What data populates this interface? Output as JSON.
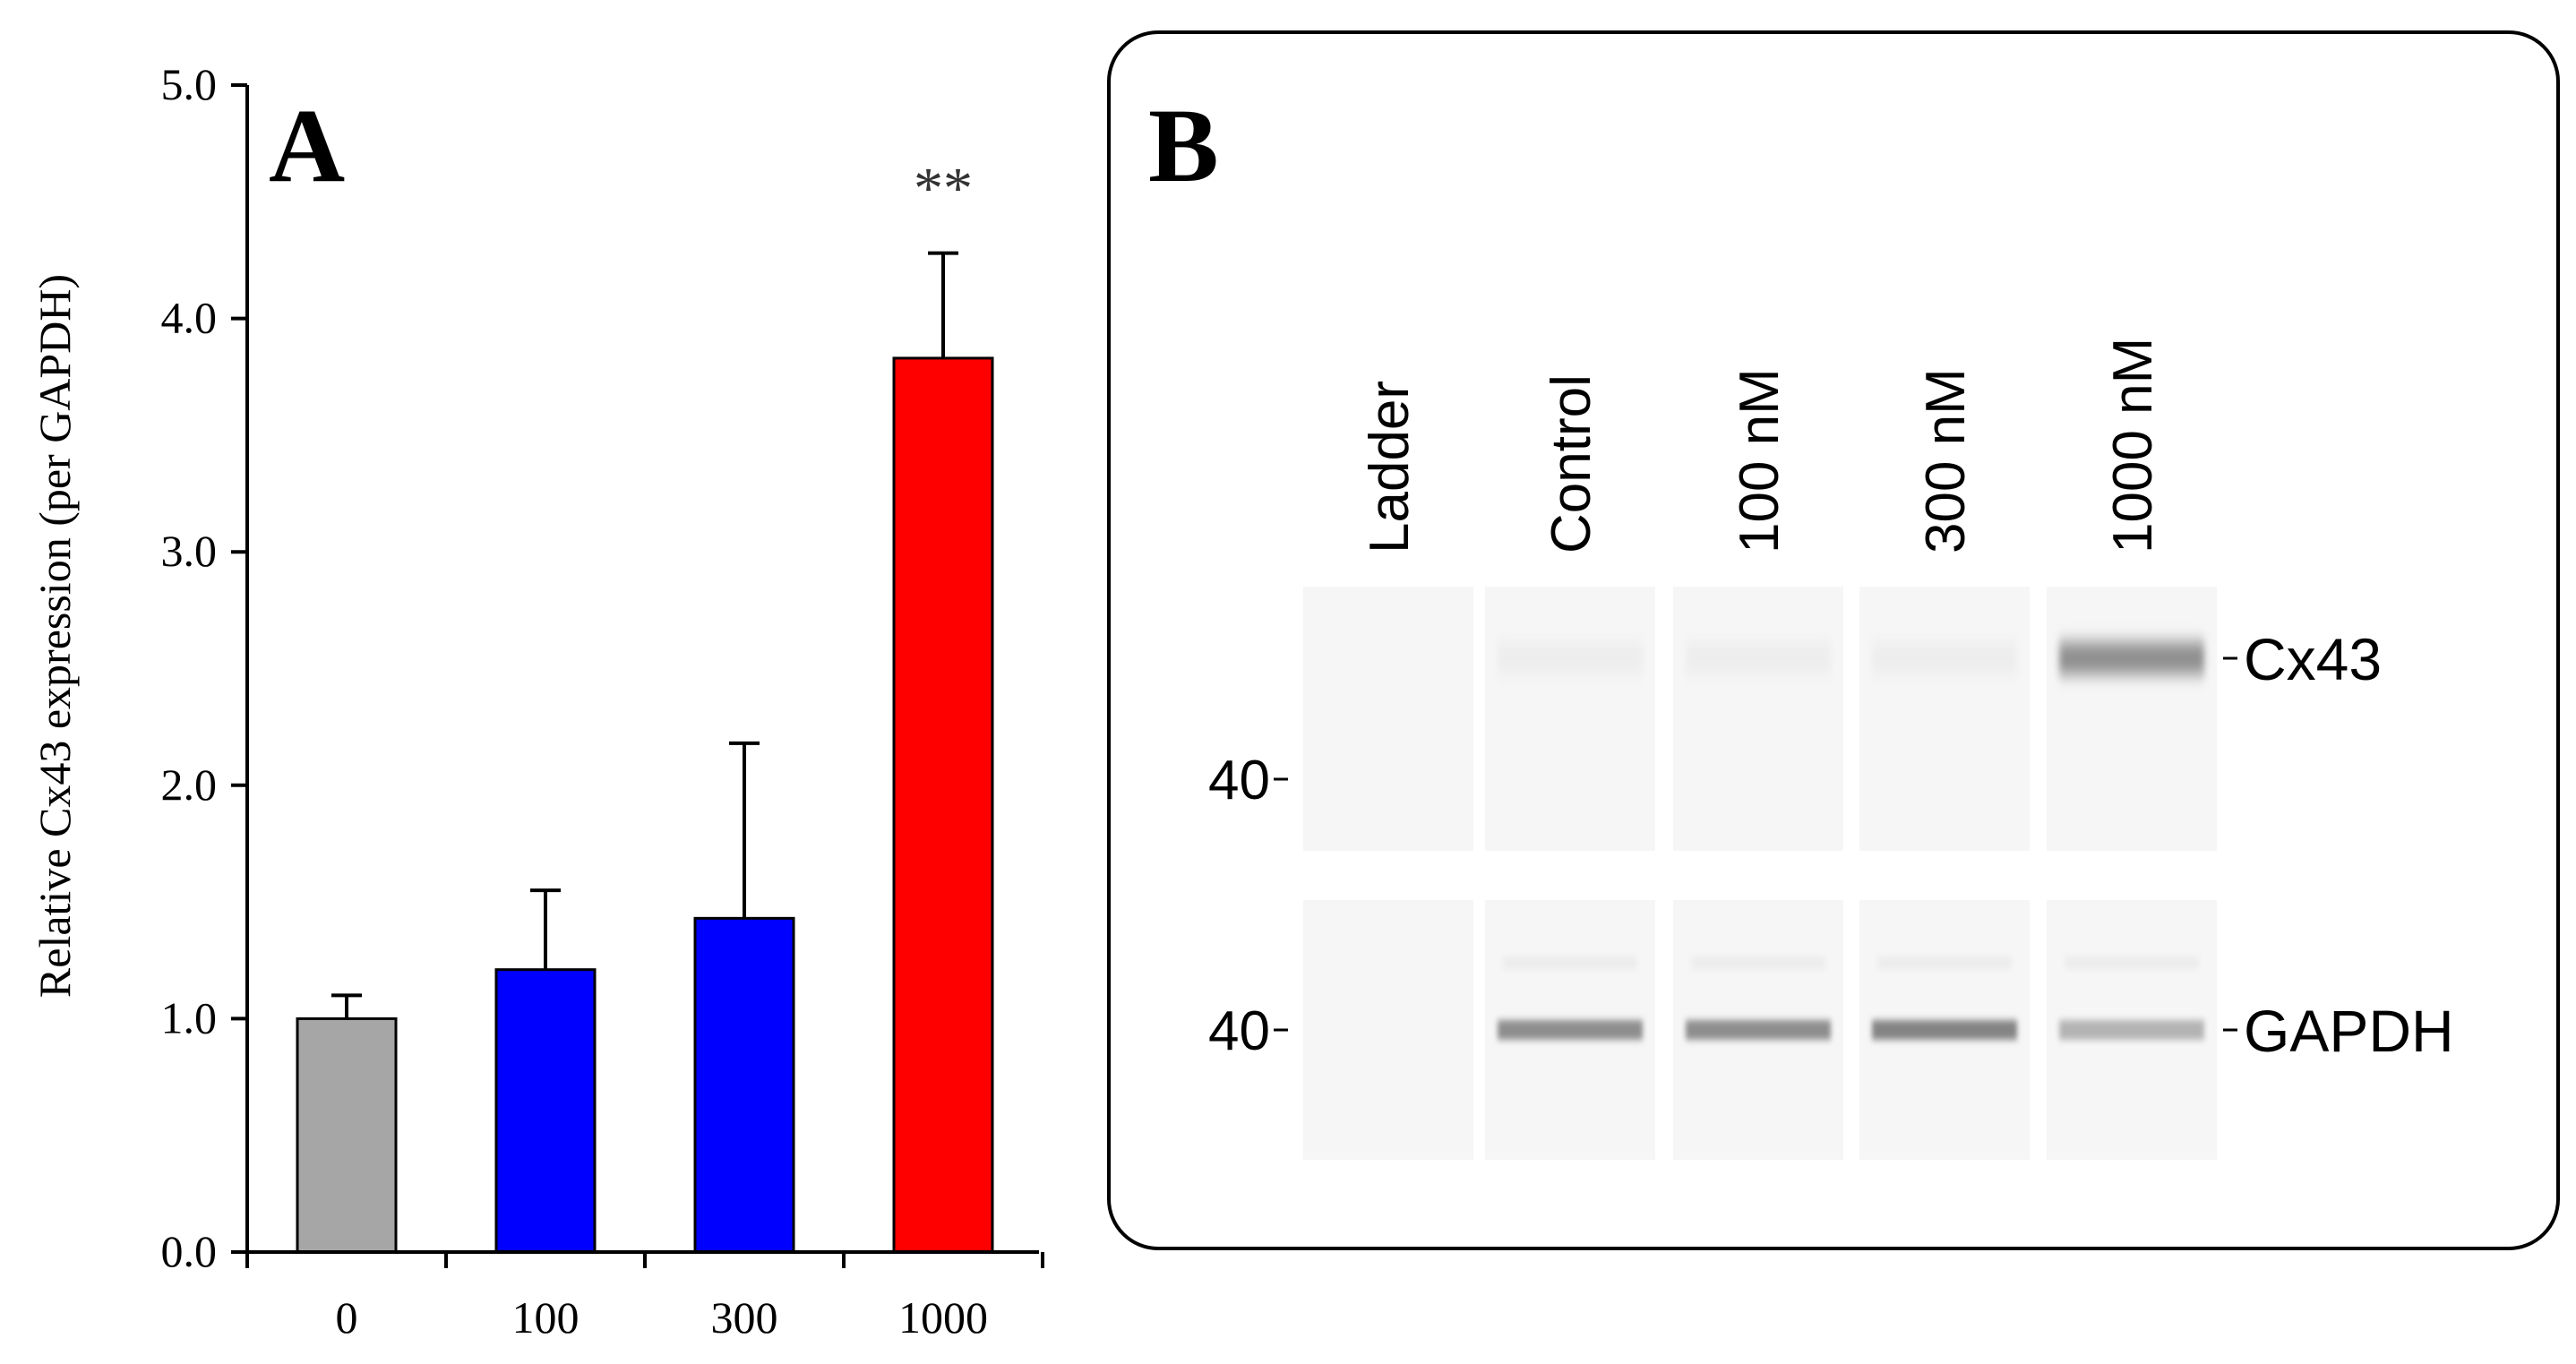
{
  "panel_a": {
    "label": "A",
    "chart_data": {
      "type": "bar",
      "categories": [
        "0",
        "100",
        "300",
        "1000"
      ],
      "values": [
        1.0,
        1.21,
        1.43,
        3.83
      ],
      "errors": [
        0.1,
        0.34,
        0.75,
        0.45
      ],
      "colors": [
        "#a6a6a6",
        "#0000ff",
        "#0000ff",
        "#ff0000"
      ],
      "ylabel": "Relative  Cx43 expression (per GAPDH)",
      "ylim": [
        0,
        5
      ],
      "yticks": [
        "0.0",
        "1.0",
        "2.0",
        "3.0",
        "4.0",
        "5.0"
      ],
      "annotations": [
        {
          "category": "1000",
          "text": "**"
        }
      ],
      "grid": false
    }
  },
  "panel_b": {
    "label": "B",
    "lanes": [
      "Ladder",
      "Control",
      "100 nM",
      "300 nM",
      "1000 nM"
    ],
    "markers": [
      "40",
      "40"
    ],
    "bands": [
      {
        "label": "Cx43",
        "intensity": [
          0,
          0.05,
          0.05,
          0.05,
          0.55
        ]
      },
      {
        "label": "GAPDH",
        "intensity": [
          0,
          0.55,
          0.55,
          0.6,
          0.35
        ]
      }
    ]
  }
}
